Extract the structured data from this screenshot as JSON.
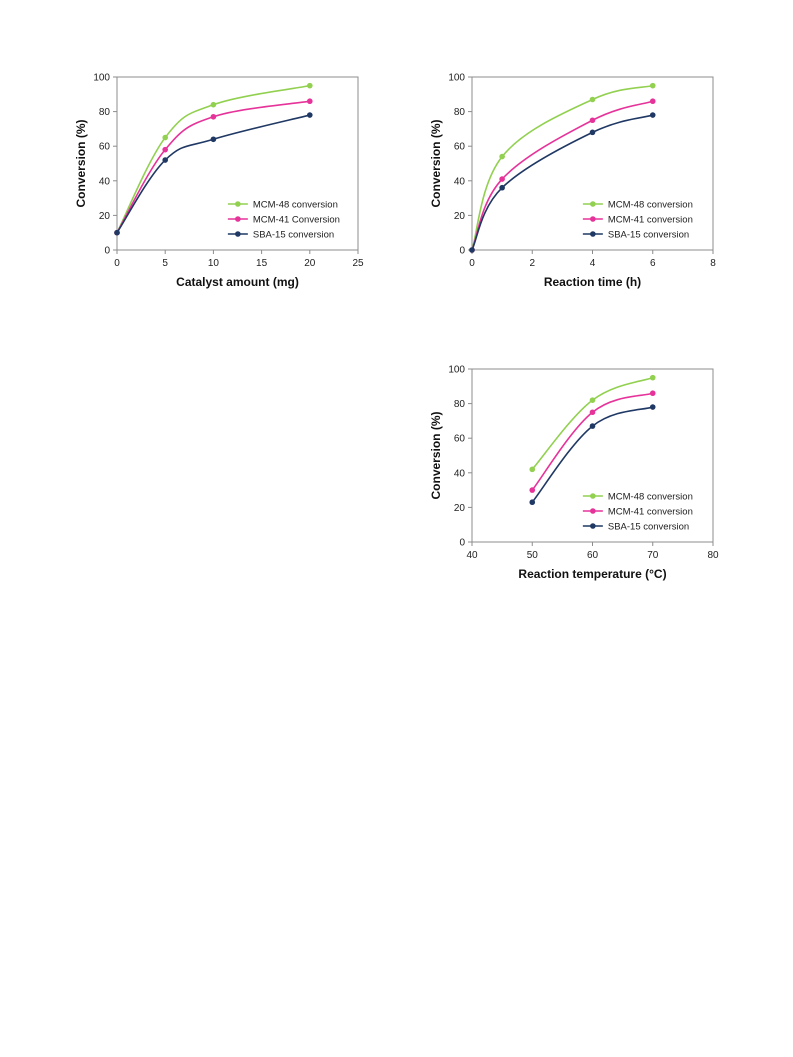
{
  "chart_data": [
    {
      "type": "line",
      "xlabel": "Catalyst amount (mg)",
      "ylabel": "Conversion (%)",
      "xlim": [
        0,
        25
      ],
      "ylim": [
        0,
        100
      ],
      "xticks": [
        0,
        5,
        10,
        15,
        20,
        25
      ],
      "yticks": [
        0,
        20,
        40,
        60,
        80,
        100
      ],
      "grid": false,
      "legend_position": "bottom-right",
      "series": [
        {
          "name": "MCM-48 conversion",
          "color": "#92d050",
          "x": [
            0,
            5,
            10,
            20
          ],
          "y": [
            10,
            65,
            84,
            95
          ]
        },
        {
          "name": "MCM-41 Conversion",
          "color": "#e6339a",
          "x": [
            0,
            5,
            10,
            20
          ],
          "y": [
            10,
            58,
            77,
            86
          ]
        },
        {
          "name": "SBA-15 conversion",
          "color": "#1f3864",
          "x": [
            0,
            5,
            10,
            20
          ],
          "y": [
            10,
            52,
            64,
            78
          ]
        }
      ]
    },
    {
      "type": "line",
      "xlabel": "Reaction time (h)",
      "ylabel": "Conversion (%)",
      "xlim": [
        0,
        8
      ],
      "ylim": [
        0,
        100
      ],
      "xticks": [
        0,
        2,
        4,
        6,
        8
      ],
      "yticks": [
        0,
        20,
        40,
        60,
        80,
        100
      ],
      "grid": false,
      "legend_position": "bottom-right",
      "series": [
        {
          "name": "MCM-48 conversion",
          "color": "#92d050",
          "x": [
            0,
            1,
            4,
            6
          ],
          "y": [
            0,
            54,
            87,
            95
          ]
        },
        {
          "name": "MCM-41 conversion",
          "color": "#e6339a",
          "x": [
            0,
            1,
            4,
            6
          ],
          "y": [
            0,
            41,
            75,
            86
          ]
        },
        {
          "name": "SBA-15 conversion",
          "color": "#1f3864",
          "x": [
            0,
            1,
            4,
            6
          ],
          "y": [
            0,
            36,
            68,
            78
          ]
        }
      ]
    },
    {
      "type": "line",
      "xlabel": "Reaction temperature (°C)",
      "ylabel": "Conversion (%)",
      "xlim": [
        40,
        80
      ],
      "ylim": [
        0,
        100
      ],
      "xticks": [
        40,
        50,
        60,
        70,
        80
      ],
      "yticks": [
        0,
        20,
        40,
        60,
        80,
        100
      ],
      "grid": false,
      "legend_position": "bottom-right",
      "series": [
        {
          "name": "MCM-48 conversion",
          "color": "#92d050",
          "x": [
            50,
            60,
            70
          ],
          "y": [
            42,
            82,
            95
          ]
        },
        {
          "name": "MCM-41 conversion",
          "color": "#e6339a",
          "x": [
            50,
            60,
            70
          ],
          "y": [
            30,
            75,
            86
          ]
        },
        {
          "name": "SBA-15 conversion",
          "color": "#1f3864",
          "x": [
            50,
            60,
            70
          ],
          "y": [
            23,
            67,
            78
          ]
        }
      ]
    }
  ]
}
